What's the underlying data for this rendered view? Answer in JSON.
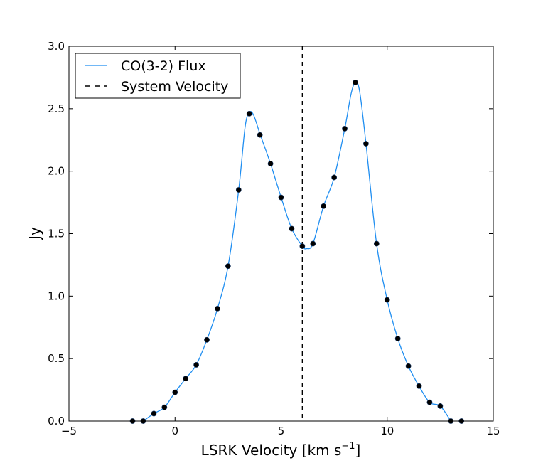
{
  "chart_data": {
    "type": "line",
    "title": "",
    "xlabel_main": "LSRK Velocity [km s",
    "xlabel_sup": "−1",
    "xlabel_end": "]",
    "ylabel": "Jy",
    "xlim": [
      -5,
      15
    ],
    "ylim": [
      0.0,
      3.0
    ],
    "x_ticks": [
      -5,
      0,
      5,
      10,
      15
    ],
    "x_tick_labels": [
      "−5",
      "0",
      "5",
      "10",
      "15"
    ],
    "y_ticks": [
      0.0,
      0.5,
      1.0,
      1.5,
      2.0,
      2.5,
      3.0
    ],
    "y_tick_labels": [
      "0.0",
      "0.5",
      "1.0",
      "1.5",
      "2.0",
      "2.5",
      "3.0"
    ],
    "grid": false,
    "legend_position": "top-left",
    "series": [
      {
        "name": "CO(3-2) Flux",
        "style": "solid-line",
        "color": "#1f8ef1",
        "x": [
          -1.5,
          -1.0,
          -0.5,
          0.0,
          0.5,
          1.0,
          1.5,
          2.0,
          2.5,
          3.0,
          3.3,
          3.5,
          3.7,
          4.0,
          4.5,
          5.0,
          5.5,
          6.0,
          6.2,
          6.5,
          7.0,
          7.5,
          8.0,
          8.3,
          8.5,
          8.7,
          9.0,
          9.5,
          10.0,
          10.5,
          11.0,
          11.5,
          12.0,
          12.5,
          13.0
        ],
        "y": [
          0.0,
          0.06,
          0.11,
          0.23,
          0.34,
          0.45,
          0.65,
          0.9,
          1.24,
          1.85,
          2.35,
          2.47,
          2.45,
          2.3,
          2.06,
          1.79,
          1.54,
          1.4,
          1.38,
          1.42,
          1.72,
          1.95,
          2.34,
          2.62,
          2.71,
          2.64,
          2.22,
          1.42,
          0.97,
          0.66,
          0.44,
          0.28,
          0.15,
          0.12,
          0.0
        ]
      },
      {
        "name": "Data points",
        "style": "markers",
        "color": "#000000",
        "x": [
          -2.0,
          -1.5,
          -1.0,
          -0.5,
          0.0,
          0.5,
          1.0,
          1.5,
          2.0,
          2.5,
          3.0,
          3.5,
          4.0,
          4.5,
          5.0,
          5.5,
          6.0,
          6.5,
          7.0,
          7.5,
          8.0,
          8.5,
          9.0,
          9.5,
          10.0,
          10.5,
          11.0,
          11.5,
          12.0,
          12.5,
          13.0,
          13.5
        ],
        "y": [
          0.0,
          0.0,
          0.06,
          0.11,
          0.23,
          0.34,
          0.45,
          0.65,
          0.9,
          1.24,
          1.85,
          2.46,
          2.29,
          2.06,
          1.79,
          1.54,
          1.4,
          1.42,
          1.72,
          1.95,
          2.34,
          2.71,
          2.22,
          1.42,
          0.97,
          0.66,
          0.44,
          0.28,
          0.15,
          0.12,
          0.0,
          0.0
        ]
      },
      {
        "name": "System Velocity",
        "style": "dashed-vertical",
        "color": "#000000",
        "x": 6.0
      }
    ],
    "legend": [
      {
        "label": "CO(3-2) Flux",
        "style": "solid",
        "color": "#1f8ef1"
      },
      {
        "label": "System Velocity",
        "style": "dashed",
        "color": "#000000"
      }
    ]
  }
}
